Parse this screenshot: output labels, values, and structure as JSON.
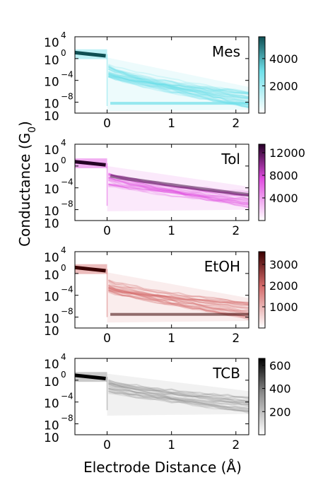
{
  "chart_data": {
    "type": "heatmap",
    "xlabel": "Electrode Distance (Å)",
    "ylabel": "Conductance (G",
    "ylabel_sub": "0",
    "ylabel_close": ")",
    "xlim": [
      -0.5,
      2.2
    ],
    "ylim_log10": [
      -10,
      4
    ],
    "x_ticks": [
      "0",
      "1",
      "2"
    ],
    "y_tick_base": "10",
    "y_tick_exponents": [
      "4",
      "0",
      "−4",
      "−8",
      ""
    ],
    "panels": [
      {
        "name": "Mes",
        "colormap": {
          "low": "#ffffff",
          "mid": "#6fe0ea",
          "high": "#0f4f53"
        },
        "colorbar_ticks": [
          "4000",
          "2000"
        ],
        "colorbar_max": 5600,
        "colorbar_tick_values": [
          4000,
          2000
        ],
        "plateau_log10": 0.8,
        "tail_end_log10": -8.2,
        "tail_start_log10": -1.0
      },
      {
        "name": "Tol",
        "colormap": {
          "low": "#ffffff",
          "mid": "#e04be0",
          "high": "#250025"
        },
        "colorbar_ticks": [
          "12000",
          "8000",
          "4000"
        ],
        "colorbar_max": 13500,
        "colorbar_tick_values": [
          12000,
          8000,
          4000
        ],
        "plateau_log10": 0.5,
        "tail_end_log10": -6.8,
        "tail_start_log10": -1.2
      },
      {
        "name": "EtOH",
        "colormap": {
          "low": "#ffffff",
          "mid": "#d46a6a",
          "high": "#3a0000"
        },
        "colorbar_ticks": [
          "3000",
          "2000",
          "1000"
        ],
        "colorbar_max": 3600,
        "colorbar_tick_values": [
          3000,
          2000,
          1000
        ],
        "plateau_log10": 0.8,
        "tail_end_log10": -7.5,
        "tail_start_log10": -1.0
      },
      {
        "name": "TCB",
        "colormap": {
          "low": "#ffffff",
          "mid": "#8a8a8a",
          "high": "#000000"
        },
        "colorbar_ticks": [
          "600",
          "400",
          "200"
        ],
        "colorbar_max": 660,
        "colorbar_tick_values": [
          600,
          400,
          200
        ],
        "plateau_log10": 0.6,
        "tail_end_log10": -5.0,
        "tail_start_log10": 0.0
      }
    ]
  }
}
